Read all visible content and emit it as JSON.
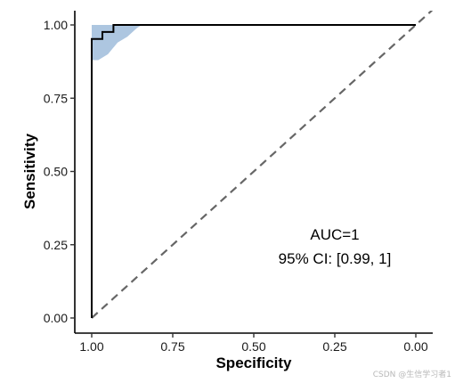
{
  "chart_data": {
    "type": "line",
    "title": "",
    "xlabel": "Specificity",
    "ylabel": "Sensitivity",
    "x_reversed": true,
    "xlim": [
      1.0,
      0.0
    ],
    "ylim": [
      0.0,
      1.0
    ],
    "x_ticks": [
      1.0,
      0.75,
      0.5,
      0.25,
      0.0
    ],
    "x_tick_labels": [
      "1.00",
      "0.75",
      "0.50",
      "0.25",
      "0.00"
    ],
    "y_ticks": [
      0.0,
      0.25,
      0.5,
      0.75,
      1.0
    ],
    "y_tick_labels": [
      "0.00",
      "0.25",
      "0.50",
      "0.75",
      "1.00"
    ],
    "grid": false,
    "roc_curve": {
      "specificity": [
        1.0,
        1.0,
        0.967,
        0.967,
        0.933,
        0.933,
        0.0
      ],
      "sensitivity": [
        0.0,
        0.952,
        0.952,
        0.976,
        0.976,
        1.0,
        1.0
      ],
      "color": "#000000"
    },
    "ci_band": {
      "specificity": [
        1.0,
        0.98,
        0.95,
        0.92,
        0.89,
        0.86,
        0.845
      ],
      "upper": [
        1.0,
        1.0,
        1.0,
        1.0,
        1.0,
        1.0,
        1.0
      ],
      "lower": [
        0.88,
        0.88,
        0.9,
        0.94,
        0.96,
        0.99,
        1.0
      ],
      "color": "#adc6e0"
    },
    "reference_line": {
      "specificity": [
        1.0,
        -0.05
      ],
      "sensitivity": [
        0.0,
        1.05
      ],
      "style": "dashed",
      "color": "#666666"
    },
    "annotations": [
      "AUC=1",
      "95% CI: [0.99, 1]"
    ]
  },
  "watermark": "CSDN @生信学习者1"
}
